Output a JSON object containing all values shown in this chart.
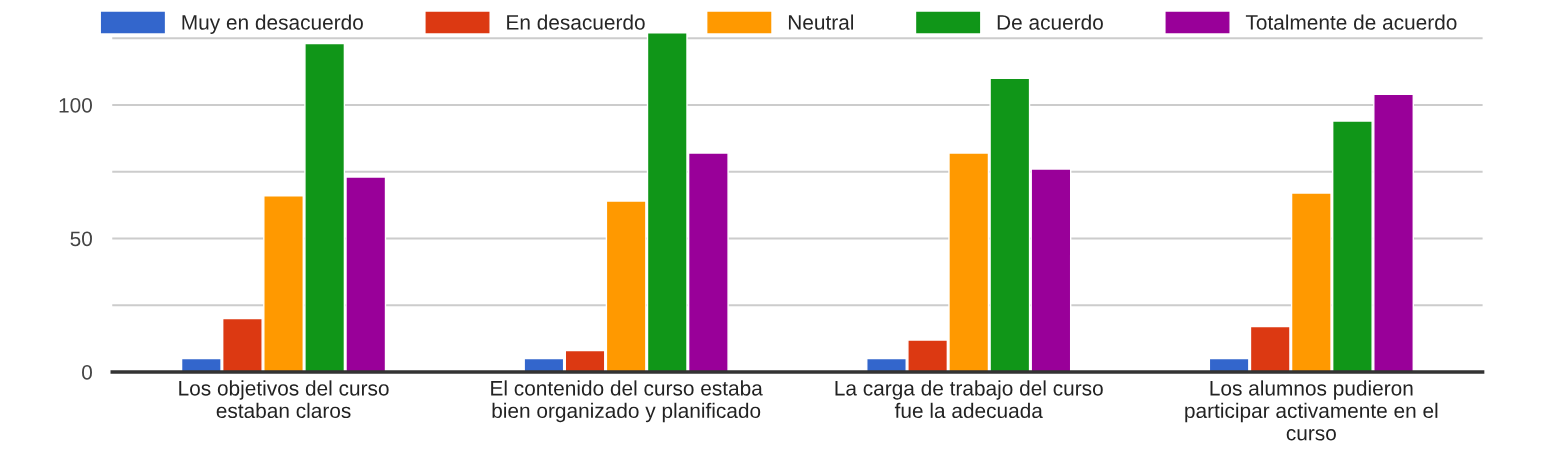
{
  "chart_data": {
    "type": "bar",
    "categories": [
      "Los objetivos del curso estaban claros",
      "El contenido del curso estaba bien organizado y planificado",
      "La carga de trabajo del curso fue la adecuada",
      "Los alumnos pudieron participar activamente en el curso"
    ],
    "series": [
      {
        "name": "Muy en desacuerdo",
        "color": "#3366cc",
        "values": [
          5,
          5,
          5,
          5
        ]
      },
      {
        "name": "En desacuerdo",
        "color": "#dc3912",
        "values": [
          20,
          8,
          12,
          17
        ]
      },
      {
        "name": "Neutral",
        "color": "#ff9900",
        "values": [
          66,
          64,
          82,
          67
        ]
      },
      {
        "name": "De acuerdo",
        "color": "#109618",
        "values": [
          123,
          127,
          110,
          94
        ]
      },
      {
        "name": "Totalmente de acuerdo",
        "color": "#990099",
        "values": [
          73,
          82,
          76,
          104
        ]
      }
    ],
    "ylim": [
      0,
      128
    ],
    "yticks": [
      0,
      {
        "value": 25,
        "label": null
      },
      50,
      {
        "value": 75,
        "label": null
      },
      100,
      {
        "value": 125,
        "label": null
      }
    ],
    "grid": "y",
    "legend": "top"
  }
}
